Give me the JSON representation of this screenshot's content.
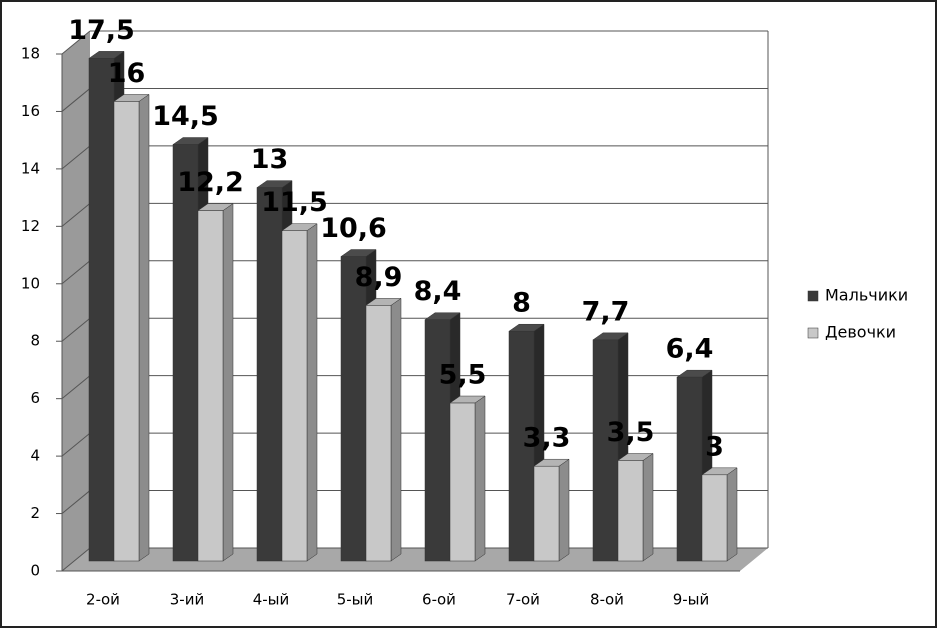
{
  "chart_data": {
    "type": "bar",
    "categories": [
      "2-ой",
      "3-ий",
      "4-ый",
      "5-ый",
      "6-ой",
      "7-ой",
      "8-ой",
      "9-ый"
    ],
    "series": [
      {
        "name": "Мальчики",
        "color": "#3a3a3a",
        "values": [
          17.5,
          14.5,
          13,
          10.6,
          8.4,
          8,
          7.7,
          6.4
        ],
        "value_labels": [
          "17,5",
          "14,5",
          "13",
          "10,6",
          "8,4",
          "8",
          "7,7",
          "6,4"
        ]
      },
      {
        "name": "Девочки",
        "color": "#c8c8c8",
        "values": [
          16,
          12.2,
          11.5,
          8.9,
          5.5,
          3.3,
          3.5,
          3
        ],
        "value_labels": [
          "16",
          "12,2",
          "11,5",
          "8,9",
          "5,5",
          "3,3",
          "3,5",
          "3"
        ]
      }
    ],
    "ylim": [
      0,
      18
    ],
    "yticks": [
      0,
      2,
      4,
      6,
      8,
      10,
      12,
      14,
      16,
      18
    ],
    "grid": true,
    "legend": "right"
  }
}
